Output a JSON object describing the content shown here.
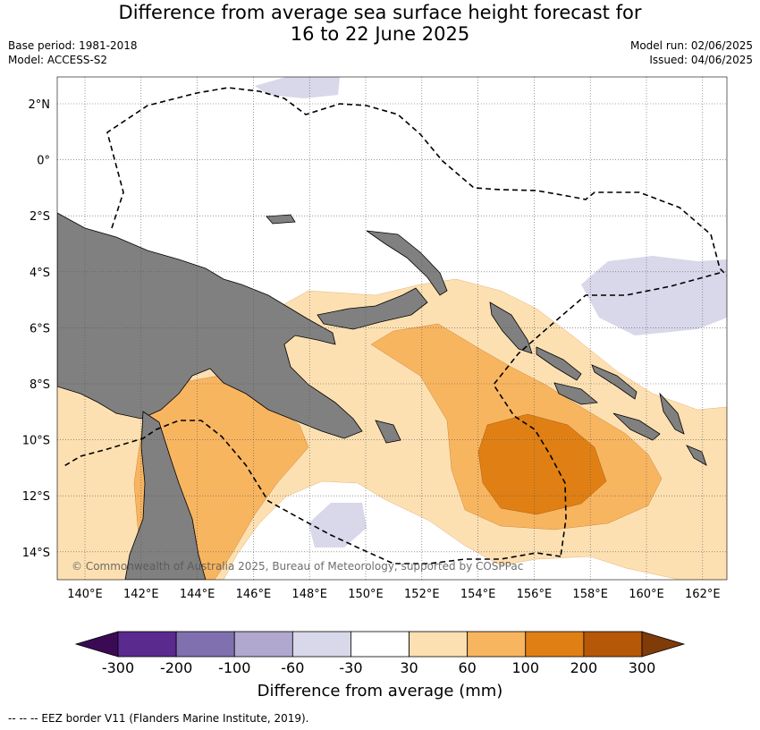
{
  "title_line1": "Difference from average sea surface height forecast for",
  "title_line2": "16 to 22 June 2025",
  "base_period": "Base period: 1981-2018",
  "model": "Model: ACCESS-S2",
  "model_run": "Model run: 02/06/2025",
  "issued": "Issued: 04/06/2025",
  "lat_labels": [
    "2°N",
    "0°",
    "2°S",
    "4°S",
    "6°S",
    "8°S",
    "10°S",
    "12°S",
    "14°S"
  ],
  "lon_labels": [
    "140°E",
    "142°E",
    "144°E",
    "146°E",
    "148°E",
    "150°E",
    "152°E",
    "154°E",
    "156°E",
    "158°E",
    "160°E",
    "162°E"
  ],
  "copyright": "© Commonwealth of Australia 2025, Bureau of Meteorology, supported by COSPPac",
  "colorbar": {
    "label": "Difference from average (mm)",
    "ticks": [
      "-300",
      "-200",
      "-100",
      "-60",
      "-30",
      "30",
      "60",
      "100",
      "200",
      "300"
    ],
    "colors": [
      "#5a2a8e",
      "#8070b0",
      "#b1a8d0",
      "#d8d8ea",
      "#ffffff",
      "#fde0b2",
      "#f8b560",
      "#e08014",
      "#b65808"
    ],
    "extend_low_color": "#3b0a55",
    "extend_high_color": "#7f3b08"
  },
  "land_color": "#808080",
  "footer": "--  --  -- EEZ border V11 (Flanders Marine Institute, 2019)."
}
